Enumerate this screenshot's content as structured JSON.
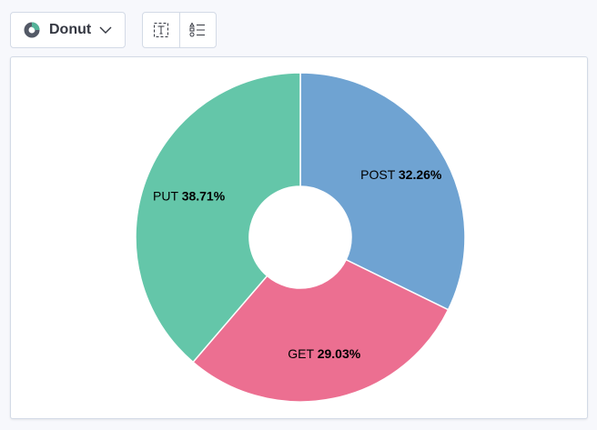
{
  "toolbar": {
    "chart_type_label": "Donut",
    "chart_type_icon": "donut-chart-icon",
    "label_toggle_icon": "text-box-icon",
    "legend_toggle_icon": "list-legend-icon"
  },
  "chart_data": {
    "type": "pie",
    "donut": true,
    "categories": [
      "POST",
      "GET",
      "PUT"
    ],
    "values": [
      32.26,
      29.03,
      38.71
    ],
    "labels": [
      "32.26%",
      "29.03%",
      "38.71%"
    ],
    "colors": [
      "#6fa3d2",
      "#ec6f91",
      "#64c6a9"
    ]
  }
}
